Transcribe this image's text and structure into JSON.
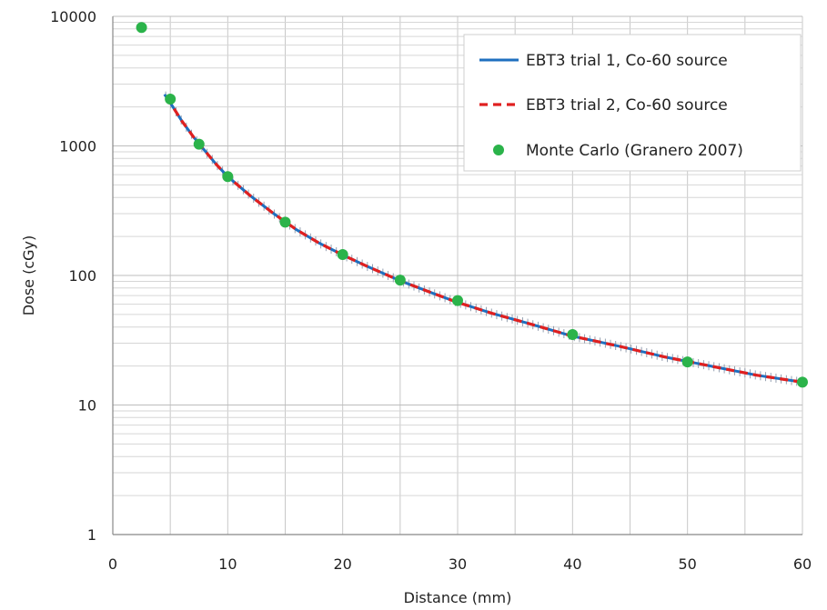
{
  "chart_data": {
    "type": "line",
    "xlabel": "Distance (mm)",
    "ylabel": "Dose (cGy)",
    "xlim": [
      0,
      60
    ],
    "ylim": [
      1,
      10000
    ],
    "yscale": "log",
    "grid": true,
    "legend_position": "top-right",
    "x_ticks": [
      "0",
      "10",
      "20",
      "30",
      "40",
      "50",
      "60"
    ],
    "y_ticks": [
      "1",
      "10",
      "100",
      "1000",
      "10000"
    ],
    "series": [
      {
        "name": "EBT3 trial 1, Co-60 source",
        "kind": "line",
        "color": "#1f6fbf",
        "x": [
          4.5,
          5,
          6,
          7,
          8,
          9,
          10,
          12,
          14,
          16,
          18,
          20,
          22,
          25,
          28,
          30,
          33,
          36,
          40,
          44,
          48,
          52,
          56,
          60
        ],
        "y": [
          2500,
          2150,
          1560,
          1180,
          920,
          720,
          580,
          410,
          300,
          225,
          177,
          144,
          119,
          91,
          72,
          62,
          51,
          43,
          34,
          28.5,
          23.5,
          20,
          17,
          15
        ]
      },
      {
        "name": "EBT3 trial 2, Co-60 source",
        "kind": "dashed-line",
        "color": "#e02020",
        "x": [
          4.8,
          5,
          6,
          7,
          8,
          9,
          10,
          12,
          14,
          16,
          18,
          20,
          22,
          25,
          28,
          30,
          33,
          36,
          40,
          44,
          48,
          52,
          56,
          60
        ],
        "y": [
          2400,
          2150,
          1560,
          1180,
          920,
          720,
          580,
          410,
          300,
          225,
          177,
          144,
          119,
          91,
          72,
          62,
          51,
          43,
          34,
          28.5,
          23.5,
          20,
          17,
          15
        ]
      },
      {
        "name": "Monte Carlo (Granero 2007)",
        "kind": "scatter",
        "color": "#2bb34a",
        "x": [
          2.5,
          5,
          7.5,
          10,
          15,
          20,
          25,
          30,
          40,
          50,
          60
        ],
        "y": [
          8200,
          2300,
          1030,
          580,
          258,
          145,
          92,
          64,
          35,
          21.5,
          15
        ]
      }
    ]
  }
}
